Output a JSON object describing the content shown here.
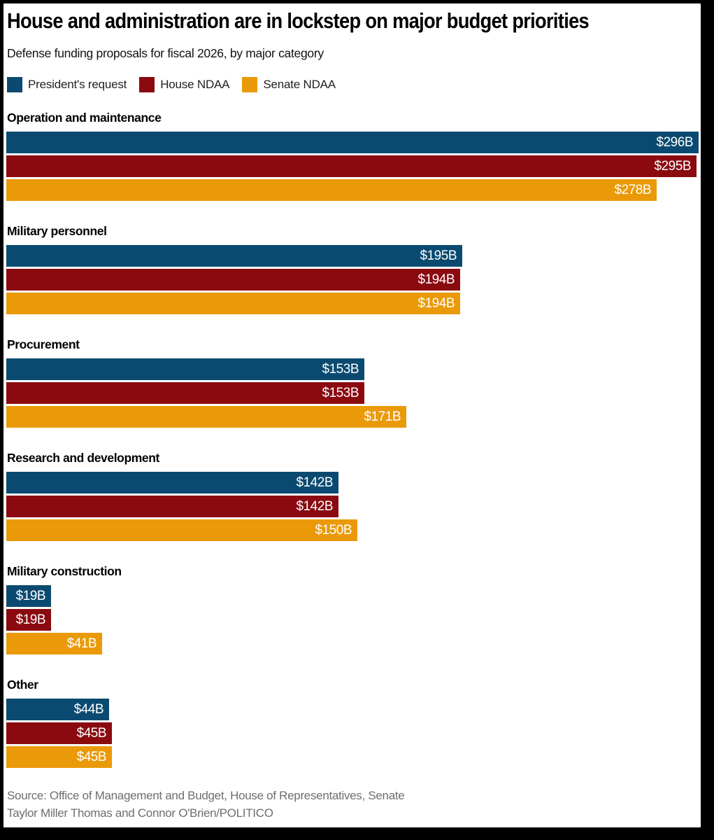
{
  "header": {
    "title": "House and administration are in lockstep on major budget priorities",
    "subtitle": "Defense funding proposals for fiscal 2026, by major category"
  },
  "legend": {
    "items": [
      {
        "label": "President's request",
        "color": "#0b4a70"
      },
      {
        "label": "House NDAA",
        "color": "#8a0a10"
      },
      {
        "label": "Senate NDAA",
        "color": "#ea9a08"
      }
    ]
  },
  "chart_data": {
    "type": "bar",
    "orientation": "horizontal",
    "unit": "billions of USD",
    "title": "House and administration are in lockstep on major budget priorities",
    "subtitle": "Defense funding proposals for fiscal 2026, by major category",
    "legend_position": "top",
    "axis_visible": false,
    "grid": false,
    "xlim": [
      0,
      296
    ],
    "categories": [
      "Operation and maintenance",
      "Military personnel",
      "Procurement",
      "Research and development",
      "Military construction",
      "Other"
    ],
    "series": [
      {
        "name": "President's request",
        "color": "#0b4a70",
        "values": [
          296,
          195,
          153,
          142,
          19,
          44
        ],
        "labels": [
          "$296B",
          "$195B",
          "$153B",
          "$142B",
          "$19B",
          "$44B"
        ]
      },
      {
        "name": "House NDAA",
        "color": "#8a0a10",
        "values": [
          295,
          194,
          153,
          142,
          19,
          45
        ],
        "labels": [
          "$295B",
          "$194B",
          "$153B",
          "$142B",
          "$19B",
          "$45B"
        ]
      },
      {
        "name": "Senate NDAA",
        "color": "#ea9a08",
        "values": [
          278,
          194,
          171,
          150,
          41,
          45
        ],
        "labels": [
          "$278B",
          "$194B",
          "$171B",
          "$150B",
          "$41B",
          "$45B"
        ]
      }
    ]
  },
  "footer": {
    "source": "Source: Office of Management and Budget, House of Representatives, Senate",
    "credit": "Taylor Miller Thomas and Connor O'Brien/POLITICO"
  }
}
